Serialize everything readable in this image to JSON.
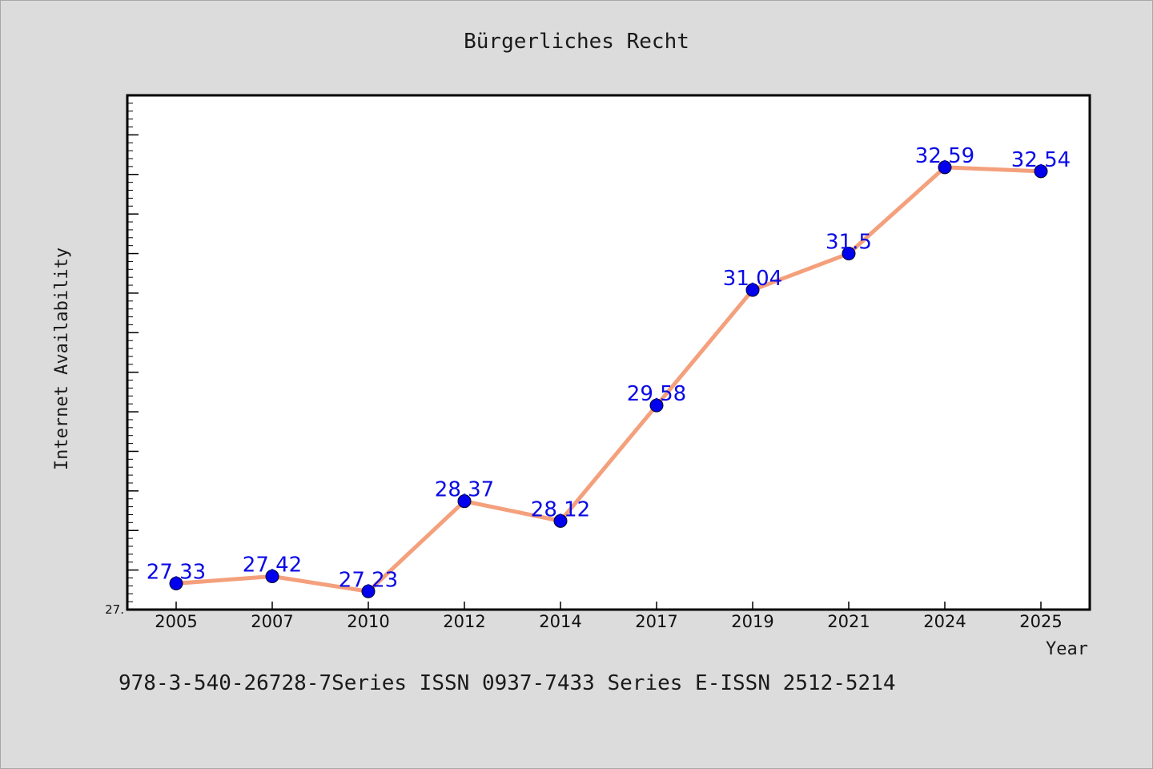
{
  "chart_data": {
    "type": "line",
    "title": "Bürgerliches Recht",
    "xlabel": "Year",
    "ylabel": "Internet Availability",
    "categories": [
      "2005",
      "2007",
      "2010",
      "2012",
      "2014",
      "2017",
      "2019",
      "2021",
      "2024",
      "2025"
    ],
    "series": [
      {
        "values": [
          27.33,
          27.42,
          27.23,
          28.37,
          28.12,
          29.58,
          31.04,
          31.5,
          32.59,
          32.54
        ],
        "labels": [
          "27.33",
          "27.42",
          "27.23",
          "28.37",
          "28.12",
          "29.58",
          "31.04",
          "31.5",
          "32.59",
          "32.54"
        ]
      }
    ],
    "y_tick_label": "27.",
    "ylim": [
      27.0,
      33.5
    ],
    "grid": false,
    "colors": {
      "line": "#f4a07c",
      "marker": "#0000ee",
      "data_label": "#0a0ae6"
    }
  },
  "footer": {
    "text": "978-3-540-26728-7Series ISSN 0937-7433 Series E-ISSN 2512-5214"
  }
}
